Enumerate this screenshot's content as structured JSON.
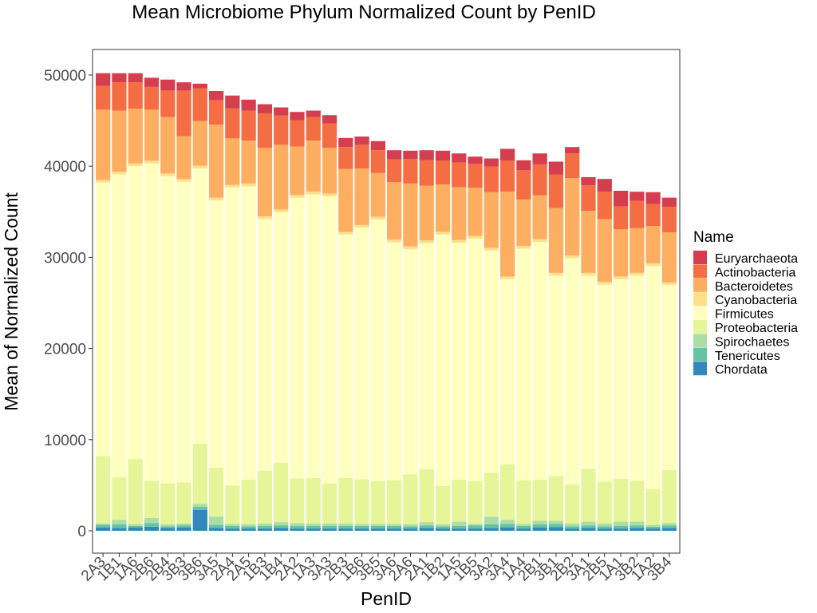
{
  "chart_data": {
    "type": "bar",
    "stacked": true,
    "title": "Mean Microbiome Phylum Normalized Count by PenID",
    "xlabel": "PenID",
    "ylabel": "Mean of Normalized Count",
    "ylim": [
      -2500,
      53000
    ],
    "yticks": [
      0,
      10000,
      20000,
      30000,
      40000,
      50000
    ],
    "grid": false,
    "legend": {
      "title": "Name",
      "position": "right"
    },
    "categories": [
      "2A3",
      "1B1",
      "1A6",
      "2B6",
      "2B4",
      "3B3",
      "3B6",
      "3A5",
      "2A4",
      "2A5",
      "1B3",
      "1B4",
      "2A2",
      "1A3",
      "3A3",
      "2B3",
      "1B6",
      "3B5",
      "3A6",
      "2A6",
      "2A1",
      "1B2",
      "1A5",
      "1B5",
      "3A2",
      "3A4",
      "1A4",
      "2B1",
      "3B1",
      "2B2",
      "3A1",
      "2B5",
      "1A1",
      "3B2",
      "1A2",
      "3B4"
    ],
    "series": [
      {
        "name": "Chordata",
        "color": "#3288BD",
        "values": [
          350,
          300,
          350,
          450,
          300,
          350,
          2300,
          300,
          250,
          250,
          250,
          300,
          250,
          250,
          250,
          250,
          250,
          250,
          250,
          250,
          300,
          250,
          250,
          250,
          300,
          350,
          250,
          350,
          400,
          250,
          300,
          250,
          250,
          300,
          250,
          300
        ]
      },
      {
        "name": "Tenericutes",
        "color": "#66C2A5",
        "values": [
          300,
          400,
          200,
          400,
          200,
          250,
          350,
          350,
          300,
          250,
          300,
          300,
          300,
          300,
          300,
          300,
          300,
          300,
          300,
          250,
          300,
          250,
          300,
          350,
          400,
          400,
          300,
          350,
          350,
          250,
          300,
          250,
          300,
          300,
          200,
          300
        ]
      },
      {
        "name": "Spirochaetes",
        "color": "#ABDDA4",
        "values": [
          150,
          500,
          150,
          550,
          200,
          200,
          300,
          900,
          200,
          200,
          250,
          350,
          300,
          250,
          250,
          250,
          200,
          200,
          200,
          200,
          350,
          200,
          450,
          150,
          850,
          450,
          200,
          400,
          350,
          300,
          400,
          300,
          450,
          400,
          200,
          250
        ]
      },
      {
        "name": "Proteobacteria",
        "color": "#E6F598",
        "values": [
          7400,
          4700,
          7200,
          4100,
          4500,
          4500,
          6600,
          5400,
          4200,
          4900,
          5800,
          6500,
          4900,
          5000,
          4400,
          5000,
          4900,
          4700,
          4800,
          5500,
          5800,
          4200,
          4600,
          4700,
          4800,
          6100,
          4800,
          4500,
          4900,
          4300,
          5800,
          4600,
          4700,
          4500,
          3900,
          5800
        ]
      },
      {
        "name": "Firmicutes",
        "color": "#FFFFBF",
        "values": [
          30000,
          33200,
          32100,
          34800,
          33700,
          33000,
          30200,
          29300,
          32700,
          32200,
          27600,
          27500,
          30800,
          31100,
          31500,
          26700,
          27600,
          28700,
          26100,
          24700,
          24800,
          27600,
          26000,
          26600,
          24400,
          20300,
          25400,
          26100,
          22000,
          24800,
          21200,
          21600,
          21900,
          22500,
          24500,
          20300
        ]
      },
      {
        "name": "Cyanobacteria",
        "color": "#FEE08B",
        "values": [
          300,
          300,
          300,
          300,
          300,
          300,
          300,
          300,
          300,
          300,
          300,
          300,
          300,
          300,
          300,
          300,
          300,
          300,
          300,
          300,
          300,
          300,
          300,
          300,
          300,
          300,
          300,
          300,
          300,
          300,
          300,
          300,
          300,
          300,
          300,
          300
        ]
      },
      {
        "name": "Bacteroidetes",
        "color": "#FDAE61",
        "values": [
          7700,
          6700,
          6000,
          5600,
          6200,
          4700,
          4900,
          8000,
          5100,
          4700,
          7500,
          7100,
          5300,
          5600,
          5000,
          6900,
          6200,
          4800,
          6300,
          6900,
          6000,
          5200,
          5800,
          5300,
          6100,
          9300,
          5100,
          4800,
          7100,
          8500,
          6800,
          6900,
          5200,
          4900,
          4100,
          5500
        ]
      },
      {
        "name": "Actinobacteria",
        "color": "#F46D43",
        "values": [
          2600,
          3100,
          2900,
          2500,
          2900,
          5000,
          3600,
          2700,
          3300,
          3300,
          3800,
          3200,
          2900,
          2600,
          2700,
          2400,
          2600,
          2500,
          2500,
          2700,
          2800,
          2600,
          2700,
          2600,
          2800,
          3400,
          3200,
          3400,
          3700,
          2700,
          2800,
          3000,
          2500,
          3000,
          2400,
          2800
        ]
      },
      {
        "name": "Euryarchaeota",
        "color": "#D53E4F",
        "values": [
          1400,
          1000,
          1000,
          1000,
          1200,
          900,
          500,
          1000,
          1400,
          1200,
          1000,
          900,
          900,
          700,
          900,
          1000,
          900,
          1000,
          1000,
          900,
          1100,
          1100,
          1000,
          800,
          900,
          1300,
          1100,
          1200,
          1400,
          700,
          900,
          1400,
          1700,
          1000,
          1300,
          1000
        ]
      }
    ]
  }
}
